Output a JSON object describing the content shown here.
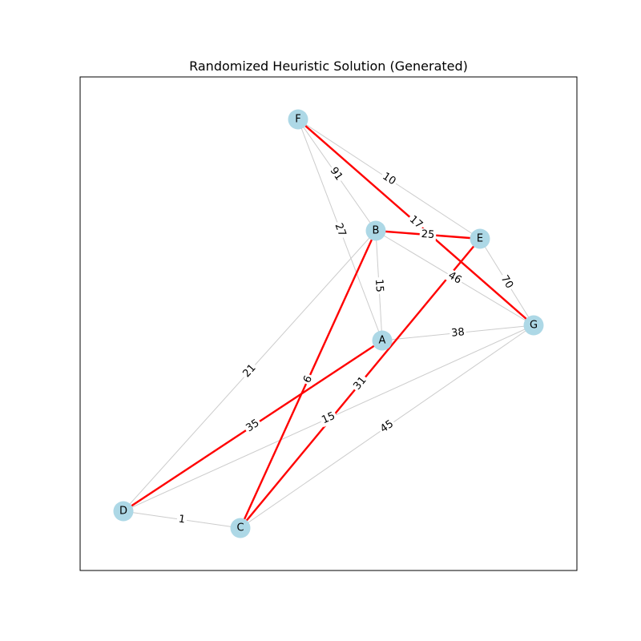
{
  "title": "Randomized Heuristic Solution (Generated)",
  "colors": {
    "node_fill": "#add8e6",
    "edge_default": "#cccccc",
    "edge_solution": "#ff0000",
    "frame": "#000000"
  },
  "graph": {
    "nodes": [
      {
        "id": "A",
        "label": "A"
      },
      {
        "id": "B",
        "label": "B"
      },
      {
        "id": "C",
        "label": "C"
      },
      {
        "id": "D",
        "label": "D"
      },
      {
        "id": "E",
        "label": "E"
      },
      {
        "id": "F",
        "label": "F"
      },
      {
        "id": "G",
        "label": "G"
      }
    ],
    "edges": [
      {
        "from": "F",
        "to": "B",
        "weight": "91",
        "solution": false
      },
      {
        "from": "F",
        "to": "E",
        "weight": "10",
        "solution": false
      },
      {
        "from": "F",
        "to": "A",
        "weight": "27",
        "solution": false
      },
      {
        "from": "B",
        "to": "A",
        "weight": "15",
        "solution": false
      },
      {
        "from": "B",
        "to": "G",
        "weight": "46",
        "solution": false
      },
      {
        "from": "B",
        "to": "D",
        "weight": "21",
        "solution": false
      },
      {
        "from": "E",
        "to": "G",
        "weight": "70",
        "solution": false
      },
      {
        "from": "A",
        "to": "G",
        "weight": "38",
        "solution": false
      },
      {
        "from": "D",
        "to": "G",
        "weight": "15",
        "solution": false
      },
      {
        "from": "C",
        "to": "G",
        "weight": "45",
        "solution": false
      },
      {
        "from": "D",
        "to": "C",
        "weight": "1",
        "solution": false
      },
      {
        "from": "F",
        "to": "G",
        "weight": "17",
        "solution": true
      },
      {
        "from": "B",
        "to": "E",
        "weight": "25",
        "solution": true
      },
      {
        "from": "B",
        "to": "C",
        "weight": "6",
        "solution": true
      },
      {
        "from": "E",
        "to": "C",
        "weight": "31",
        "solution": true
      },
      {
        "from": "A",
        "to": "D",
        "weight": "35",
        "solution": true
      }
    ]
  }
}
